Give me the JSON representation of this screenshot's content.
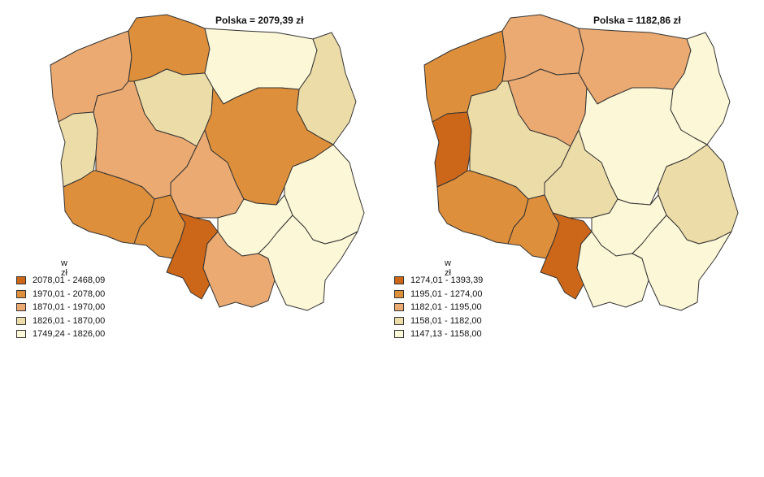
{
  "maps": [
    {
      "title": "Polska = 2079,39 zł",
      "legend_unit": "w zł",
      "legend": [
        {
          "range": "2078,01  -  2468,09",
          "color": "#cc6619"
        },
        {
          "range": "1970,01  -  2078,00",
          "color": "#dd8f3c"
        },
        {
          "range": "1870,01  -  1970,00",
          "color": "#eaaa72"
        },
        {
          "range": "1826,01  -  1870,00",
          "color": "#ecdca8"
        },
        {
          "range": "1749,24  -  1826,00",
          "color": "#fcf7d6"
        }
      ]
    },
    {
      "title": "Polska = 1182,86 zł",
      "legend_unit": "w zł",
      "legend": [
        {
          "range": "1274,01  -  1393,39",
          "color": "#cc6619"
        },
        {
          "range": "1195,01  -  1274,00",
          "color": "#dd8f3c"
        },
        {
          "range": "1182,01  -  1195,00",
          "color": "#eaaa72"
        },
        {
          "range": "1158,01  -  1182,00",
          "color": "#ecdca8"
        },
        {
          "range": "1147,13  -  1158,00",
          "color": "#fcf7d6"
        }
      ]
    }
  ]
}
